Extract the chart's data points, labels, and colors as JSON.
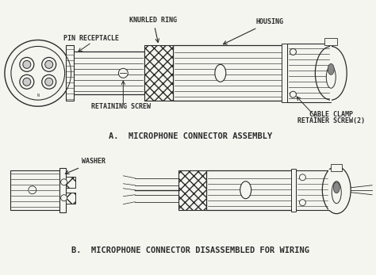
{
  "title_a": "A.  MICROPHONE CONNECTOR ASSEMBLY",
  "title_b": "B.  MICROPHONE CONNECTOR DISASSEMBLED FOR WIRING",
  "label_knurled_ring": "KNURLED RING",
  "label_housing": "HOUSING",
  "label_pin_receptacle": "PIN RECEPTACLE",
  "label_retaining_screw": "RETAINING SCREW",
  "label_cable_clamp": "CABLE CLAMP",
  "label_retainer_screw": "RETAINER SCREW(2)",
  "label_washer": "WASHER",
  "bg_color": "#f5f5f0",
  "line_color": "#2a2a2a",
  "font_size_label": 6.0,
  "font_size_title": 7.5
}
